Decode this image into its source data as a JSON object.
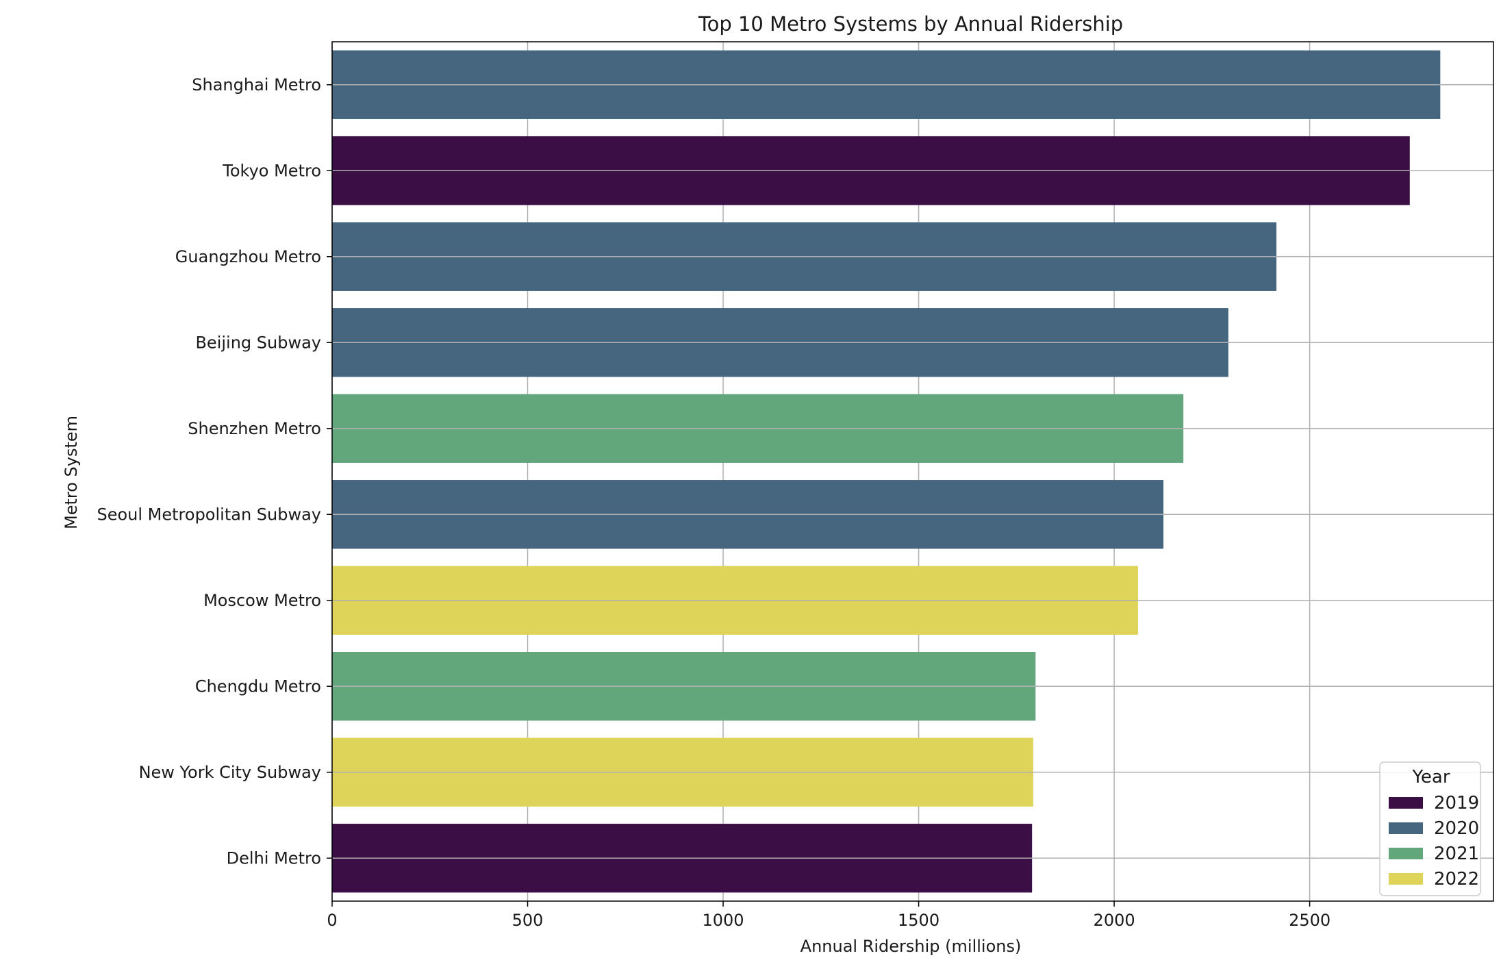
{
  "chart_data": {
    "type": "bar",
    "orientation": "horizontal",
    "title": "Top 10 Metro Systems by Annual Ridership",
    "xlabel": "Annual Ridership (millions)",
    "ylabel": "Metro System",
    "xlim": [
      0,
      2970
    ],
    "xticks": [
      0,
      500,
      1000,
      1500,
      2000,
      2500
    ],
    "grid": true,
    "legend": {
      "title": "Year",
      "placement": "lower-right",
      "entries": [
        {
          "label": "2019",
          "color": "#3b0f45"
        },
        {
          "label": "2020",
          "color": "#46667f"
        },
        {
          "label": "2021",
          "color": "#62a77c"
        },
        {
          "label": "2022",
          "color": "#dfd45a"
        }
      ]
    },
    "bars": [
      {
        "category": "Shanghai Metro",
        "value": 2834,
        "year": "2020"
      },
      {
        "category": "Tokyo Metro",
        "value": 2756,
        "year": "2019"
      },
      {
        "category": "Guangzhou Metro",
        "value": 2415,
        "year": "2020"
      },
      {
        "category": "Beijing Subway",
        "value": 2292,
        "year": "2020"
      },
      {
        "category": "Shenzhen Metro",
        "value": 2177,
        "year": "2021"
      },
      {
        "category": "Seoul Metropolitan Subway",
        "value": 2126,
        "year": "2020"
      },
      {
        "category": "Moscow Metro",
        "value": 2061,
        "year": "2022"
      },
      {
        "category": "Chengdu Metro",
        "value": 1799,
        "year": "2021"
      },
      {
        "category": "New York City Subway",
        "value": 1793,
        "year": "2022"
      },
      {
        "category": "Delhi Metro",
        "value": 1790,
        "year": "2019"
      }
    ]
  }
}
